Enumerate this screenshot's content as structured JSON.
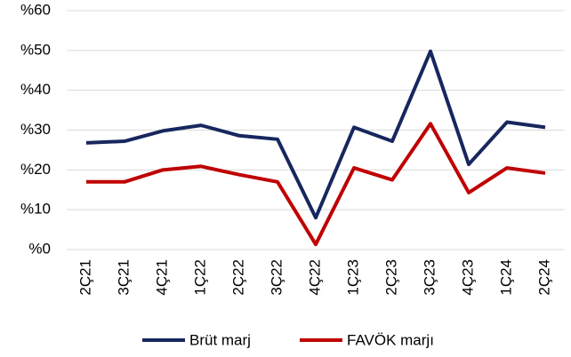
{
  "chart_data": {
    "type": "line",
    "categories": [
      "2Ç21",
      "3Ç21",
      "4Ç21",
      "1Ç22",
      "2Ç22",
      "3Ç22",
      "4Ç22",
      "1Ç23",
      "2Ç23",
      "3Ç23",
      "4Ç23",
      "1Ç24",
      "2Ç24"
    ],
    "series": [
      {
        "name": "Brüt marj",
        "color": "#17275e",
        "values": [
          26.8,
          27.2,
          29.8,
          31.2,
          28.6,
          27.7,
          8.0,
          30.7,
          27.2,
          49.8,
          21.4,
          32.0,
          30.7
        ]
      },
      {
        "name": "FAVÖK marjı",
        "color": "#c00000",
        "values": [
          17.0,
          17.0,
          20.0,
          20.9,
          18.8,
          17.0,
          1.3,
          20.5,
          17.5,
          31.6,
          14.3,
          20.5,
          19.2
        ]
      }
    ],
    "ylim": [
      0,
      60
    ],
    "yticks": [
      {
        "value": 0,
        "label": "%0"
      },
      {
        "value": 10,
        "label": "%10"
      },
      {
        "value": 20,
        "label": "%20"
      },
      {
        "value": 30,
        "label": "%30"
      },
      {
        "value": 40,
        "label": "%40"
      },
      {
        "value": 50,
        "label": "%50"
      },
      {
        "value": 60,
        "label": "%60"
      }
    ],
    "grid": true,
    "legend": "bottom"
  }
}
